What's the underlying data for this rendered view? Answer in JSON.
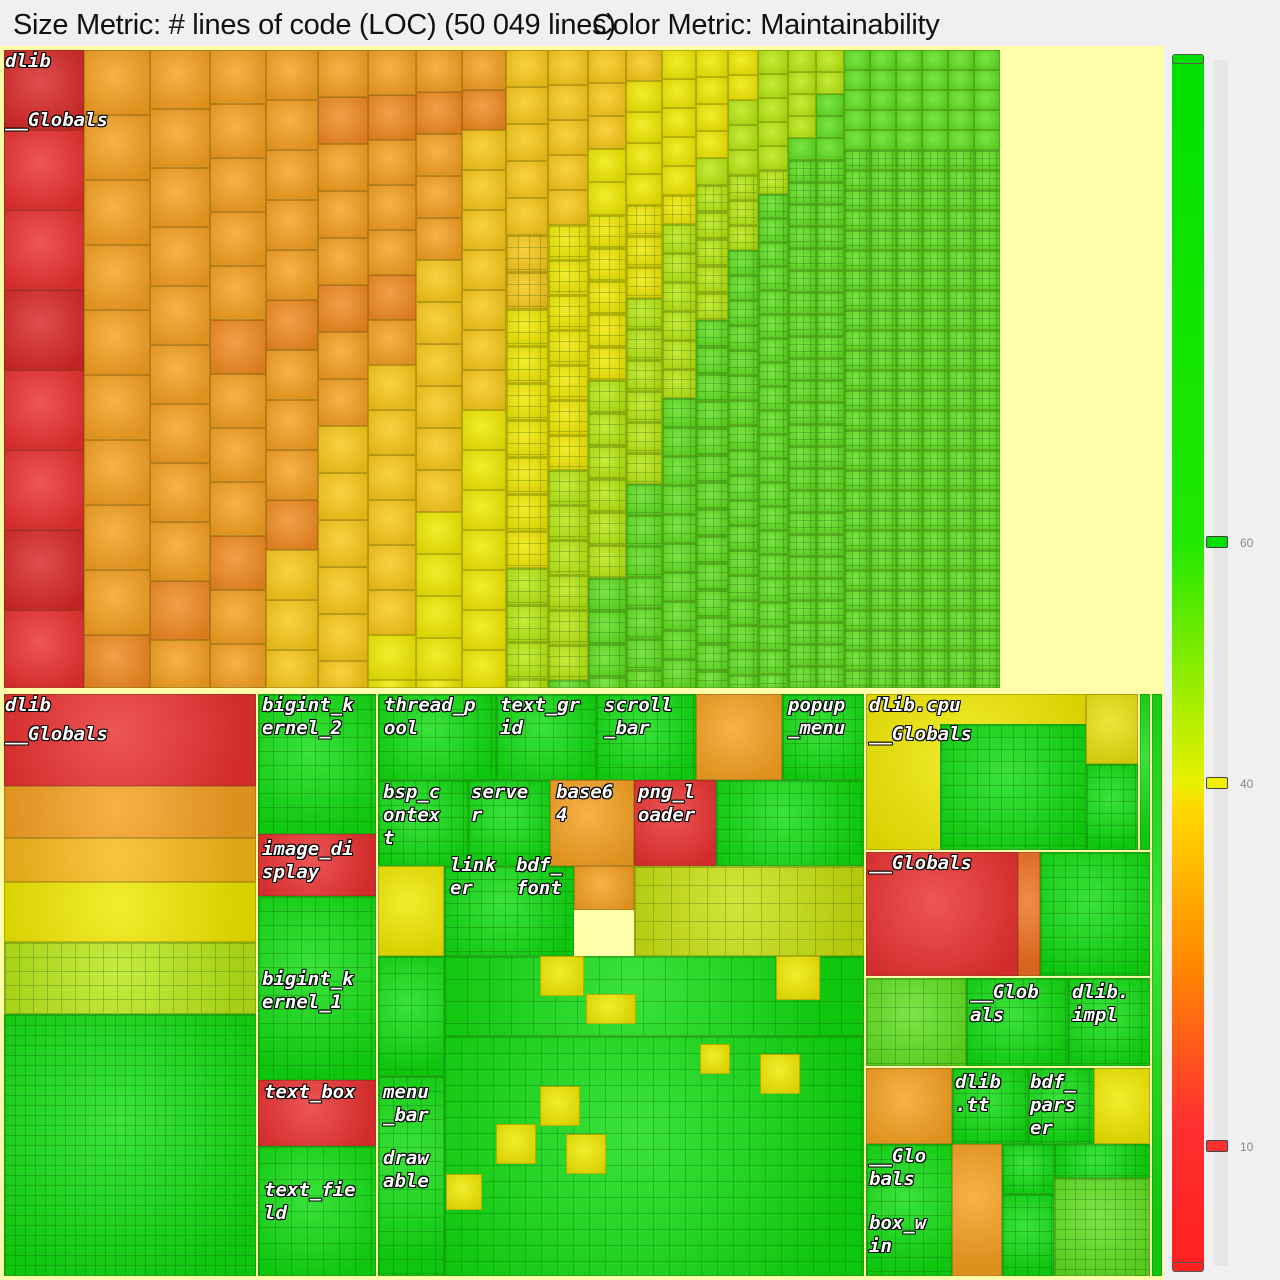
{
  "header": {
    "size_metric": "Size Metric: # lines of code (LOC) (50 049 lines)",
    "color_metric": "Color Metric: Maintainability"
  },
  "legend": {
    "ticks": [
      "60",
      "40",
      "10"
    ],
    "colors": {
      "high": "#00e000",
      "mid": "#f0f000",
      "low": "#ff2020"
    }
  },
  "treemap": {
    "labels": [
      "dlib",
      "__Globals",
      "dlib",
      "__Globals",
      "bigint_k\nernel_2",
      "thread_p\nool",
      "text_gr\nid",
      "scroll\n_bar",
      "popup\n_menu",
      "dlib.cpu",
      "__Globals",
      "bsp_c\nontex\nt",
      "serve\nr",
      "base6\n4",
      "png_l\noader",
      "image_di\nsplay",
      "link\ner",
      "bdf_\nfont",
      "__Globals",
      "bigint_k\nernel_1",
      "__Glob\nals",
      "dlib.\nimpl",
      "text_box",
      "menu\n_bar",
      "dlib\n.tt",
      "bdf_\npars\ner",
      "draw\nable",
      "__Glo\nbals",
      "text_fie\nld",
      "box_w\nin"
    ]
  }
}
